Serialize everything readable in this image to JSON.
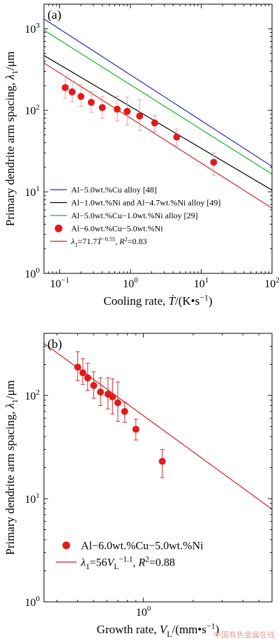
{
  "watermark": "中国有色金属在线",
  "chart_data": [
    {
      "type": "scatter",
      "panel_label": "(a)",
      "xlabel": "Cooling rate, Ṫ/(K•s⁻¹)",
      "ylabel": "Primary dendrite arm spacing, λ₁/μm",
      "x_scale": "log",
      "y_scale": "log",
      "xlim": [
        0.06,
        100
      ],
      "ylim": [
        1,
        2000
      ],
      "x_ticks": [
        {
          "v": 0.1,
          "b": "10",
          "e": "−1"
        },
        {
          "v": 1,
          "b": "10",
          "e": "0"
        },
        {
          "v": 10,
          "b": "10",
          "e": "1"
        },
        {
          "v": 100,
          "b": "10",
          "e": "2"
        }
      ],
      "y_ticks": [
        {
          "v": 1,
          "b": "10",
          "e": "0"
        },
        {
          "v": 10,
          "b": "10",
          "e": "1"
        },
        {
          "v": 100,
          "b": "10",
          "e": "2"
        },
        {
          "v": 1000,
          "b": "10",
          "e": "3"
        }
      ],
      "grid": false,
      "legend_position": "lower-left",
      "lines": [
        {
          "name": "Al−5.0wt.%Cu alloy [48]",
          "color": "#2b2bb0",
          "x": [
            0.06,
            100
          ],
          "y": [
            1320,
            20.5
          ]
        },
        {
          "name": "Al−1.0wt.%Ni and Al−4.7wt.%Ni alloy [49]",
          "color": "#000000",
          "x": [
            0.06,
            100
          ],
          "y": [
            470,
            10.5
          ]
        },
        {
          "name": "Al−5.0wt.%Cu−1.0wt.%Ni alloy [29]",
          "color": "#1faa1f",
          "x": [
            0.06,
            100
          ],
          "y": [
            960,
            16.5
          ]
        },
        {
          "name": "λ₁=71.7Ṫ^−0.55, R²=0.83",
          "color": "#cc2222",
          "x": [
            0.06,
            100
          ],
          "y": [
            380,
            6.3
          ]
        }
      ],
      "series": [
        {
          "name": "Al−6.0wt.%Cu−5.0wt.%Ni",
          "color": "#e21a1a",
          "x": [
            0.12,
            0.15,
            0.2,
            0.28,
            0.4,
            0.65,
            0.9,
            1.35,
            2.2,
            4.5,
            15
          ],
          "y": [
            190,
            168,
            148,
            125,
            108,
            103,
            97,
            85,
            70,
            47,
            23
          ],
          "err_low": [
            140,
            128,
            112,
            94,
            80,
            74,
            66,
            56,
            55,
            37,
            16
          ],
          "err_high": [
            265,
            228,
            205,
            170,
            148,
            148,
            145,
            135,
            86,
            59,
            30
          ]
        }
      ]
    },
    {
      "type": "scatter",
      "panel_label": "(b)",
      "xlabel": "Growth rate, V_L/(mm•s⁻¹)",
      "ylabel": "Primary dendrite arm spacing, λ₁/μm",
      "x_scale": "log",
      "y_scale": "log",
      "xlim": [
        0.25,
        6
      ],
      "ylim": [
        1,
        400
      ],
      "x_ticks": [
        {
          "v": 1,
          "b": "10",
          "e": "0"
        }
      ],
      "y_ticks": [
        {
          "v": 1,
          "b": "10",
          "e": "0"
        },
        {
          "v": 10,
          "b": "10",
          "e": "1"
        },
        {
          "v": 100,
          "b": "10",
          "e": "2"
        }
      ],
      "grid": false,
      "legend_position": "lower-left",
      "lines": [
        {
          "name": "λ₁=56V_L^−1.1, R²=0.88",
          "color": "#cc2222",
          "x": [
            0.25,
            6
          ],
          "y": [
            320,
            7.9
          ]
        }
      ],
      "series": [
        {
          "name": "Al−6.0wt.%Cu−5.0wt.%Ni",
          "color": "#e21a1a",
          "x": [
            0.4,
            0.43,
            0.46,
            0.5,
            0.55,
            0.61,
            0.65,
            0.7,
            0.77,
            0.9,
            1.3
          ],
          "y": [
            188,
            166,
            148,
            125,
            108,
            103,
            97,
            85,
            70,
            47,
            23
          ],
          "err_low": [
            140,
            128,
            112,
            94,
            80,
            74,
            66,
            56,
            55,
            37,
            16
          ],
          "err_high": [
            265,
            228,
            205,
            170,
            148,
            148,
            145,
            135,
            86,
            59,
            30
          ]
        }
      ]
    }
  ]
}
